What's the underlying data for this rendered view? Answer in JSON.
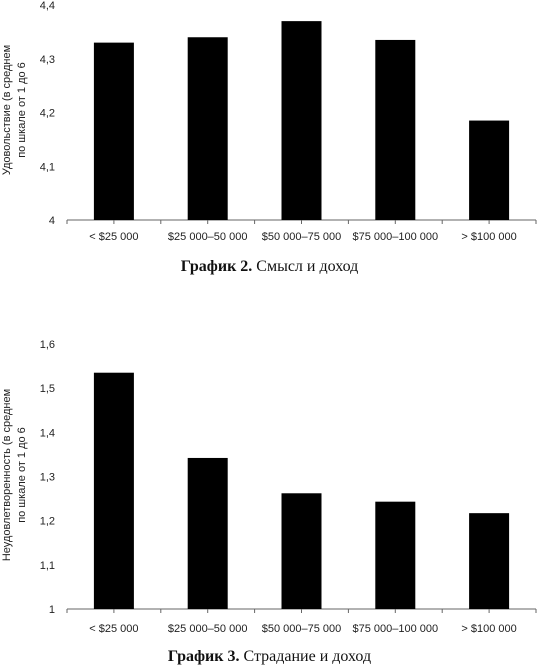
{
  "chart_data": [
    {
      "type": "bar",
      "categories": [
        "< $25 000",
        "$25 000–50 000",
        "$50 000–75 000",
        "$75 000–100 000",
        "> $100 000"
      ],
      "values": [
        4.33,
        4.34,
        4.37,
        4.335,
        4.185
      ],
      "ylabel": [
        "Удовольствие (в среднем",
        "по шкале от 1 до 6"
      ],
      "ylim": [
        4,
        4.4
      ],
      "yticks": [
        "4",
        "4,1",
        "4,2",
        "4,3",
        "4,4"
      ],
      "caption_bold": "График 2.",
      "caption_text": " Смысл и доход",
      "grid": false,
      "bar_color": "#000000"
    },
    {
      "type": "bar",
      "categories": [
        "< $25 000",
        "$25 000–50 000",
        "$50 000–75 000",
        "$75 000–100 000",
        "> $100 000"
      ],
      "values": [
        1.535,
        1.342,
        1.262,
        1.243,
        1.217
      ],
      "ylabel": [
        "Неудовлетворенность (в среднем",
        "по шкале от 1 до 6"
      ],
      "ylim": [
        1,
        1.6
      ],
      "yticks": [
        "1",
        "1,1",
        "1,2",
        "1,3",
        "1,4",
        "1,5",
        "1,6"
      ],
      "caption_bold": "График 3.",
      "caption_text": " Страдание и доход",
      "grid": false,
      "bar_color": "#000000"
    }
  ]
}
